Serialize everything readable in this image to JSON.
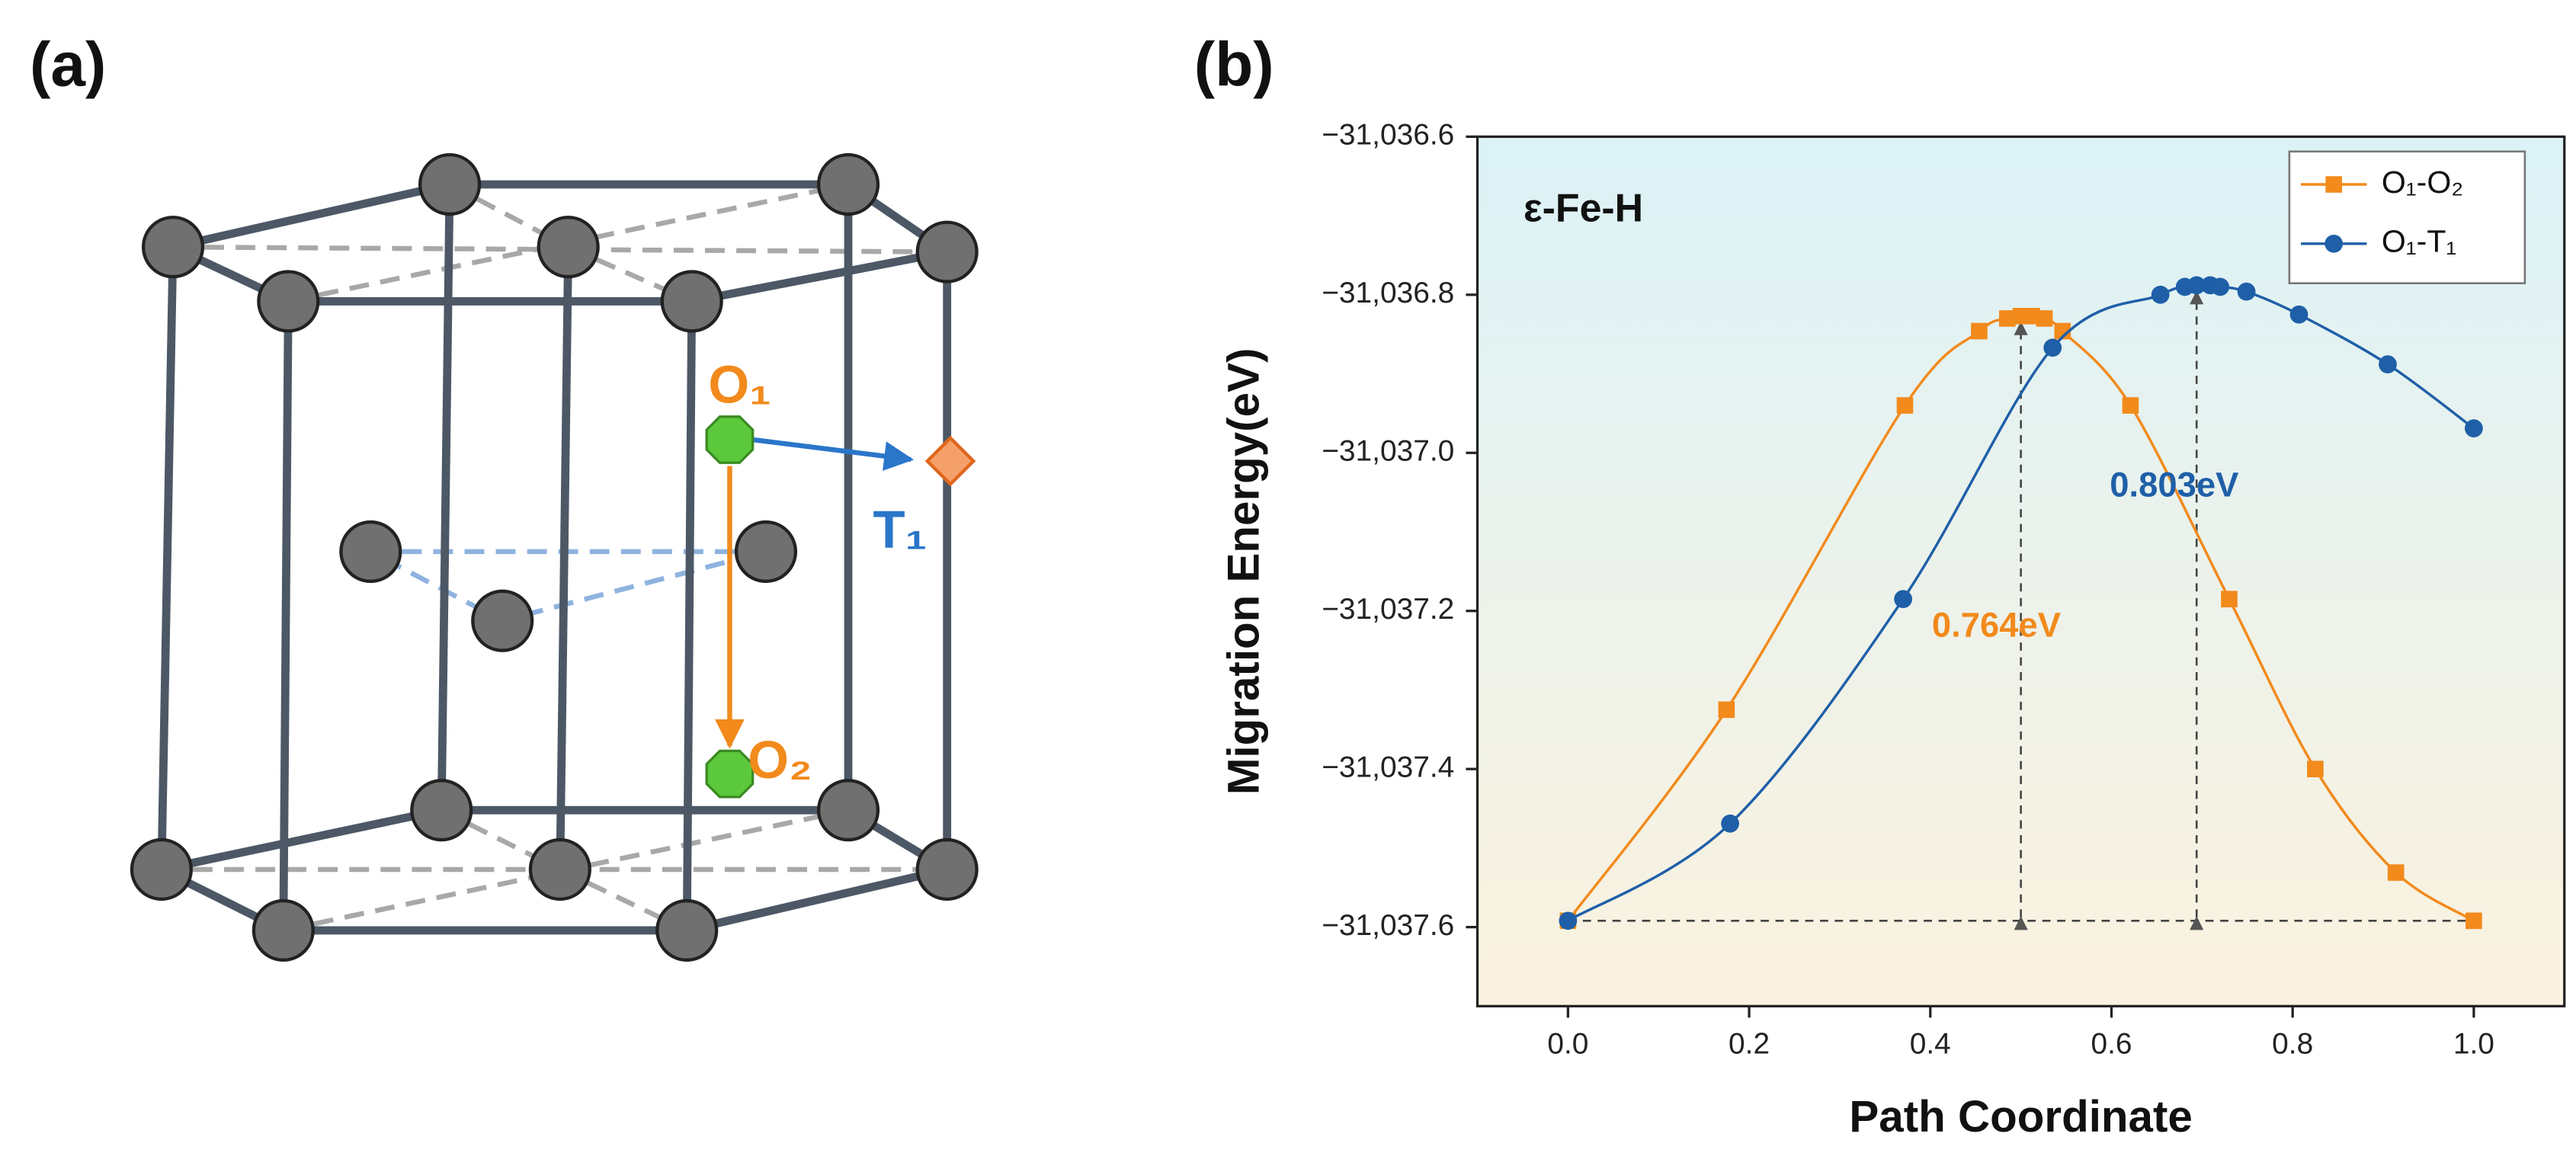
{
  "panel_labels": [
    "(a)",
    "(b)"
  ],
  "diagram": {
    "site_labels": [
      {
        "text": "O₁",
        "color": "#f28a1c"
      },
      {
        "text": "T₁",
        "color": "#2a76c9"
      },
      {
        "text": "O₂",
        "color": "#f28a1c"
      }
    ]
  },
  "chart_data": {
    "type": "line",
    "title": "ε-Fe-H",
    "x_label": "Path Coordinate",
    "y_label": "Migration Energy(eV)",
    "xlim": [
      -0.1,
      1.1
    ],
    "ylim": [
      -31037.7,
      -31036.6
    ],
    "xticks": [
      {
        "value": 0,
        "label": "0.0"
      },
      0.2,
      0.4,
      0.6,
      0.8,
      {
        "value": 1,
        "label": "1.0"
      }
    ],
    "yticks": [
      {
        "value": -31037.6,
        "label": "−31,037.6"
      },
      {
        "value": -31037.4,
        "label": "−31,037.4"
      },
      {
        "value": -31037.2,
        "label": "−31,037.2"
      },
      {
        "value": -31037.0,
        "label": "−31,037.0"
      },
      {
        "value": -31036.8,
        "label": "−31,036.8"
      },
      {
        "value": -31036.6,
        "label": "−31,036.6"
      }
    ],
    "legend": "upper right",
    "series": [
      {
        "name": "O₁-O₂",
        "color": "#f28a1c",
        "marker": "square",
        "x": [
          0,
          0.175,
          0.372,
          0.454,
          0.485,
          0.5,
          0.512,
          0.526,
          0.546,
          0.621,
          0.73,
          0.825,
          0.914,
          1.0
        ],
        "values": [
          -31037.592,
          -31037.325,
          -31036.94,
          -31036.846,
          -31036.83,
          -31036.827,
          -31036.827,
          -31036.83,
          -31036.846,
          -31036.94,
          -31037.185,
          -31037.4,
          -31037.531,
          -31037.592
        ]
      },
      {
        "name": "O₁-T₁",
        "color": "#1f5fa8",
        "marker": "circle",
        "x": [
          0,
          0.179,
          0.37,
          0.535,
          0.654,
          0.681,
          0.694,
          0.709,
          0.72,
          0.749,
          0.807,
          0.905,
          1.0
        ],
        "values": [
          -31037.592,
          -31037.469,
          -31037.185,
          -31036.867,
          -31036.8,
          -31036.79,
          -31036.788,
          -31036.788,
          -31036.79,
          -31036.796,
          -31036.825,
          -31036.888,
          -31036.969
        ]
      }
    ],
    "annotations": [
      {
        "text": "0.764eV",
        "color": "#f28a1c"
      },
      {
        "text": "0.803eV",
        "color": "#1f5fa8"
      }
    ]
  }
}
